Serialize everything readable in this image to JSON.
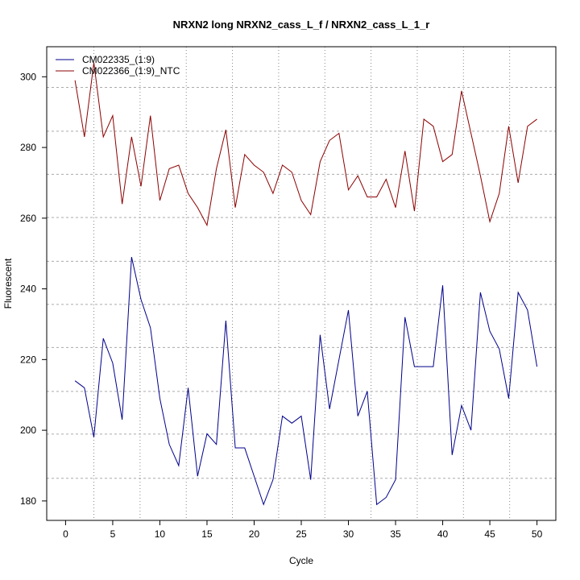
{
  "chart_data": {
    "type": "line",
    "title": "NRXN2 long NRXN2_cass_L_f / NRXN2_cass_L_1_r",
    "xlabel": "Cycle",
    "ylabel": "Fluorescent",
    "xlim": [
      -2,
      52
    ],
    "ylim": [
      174.5,
      308.5
    ],
    "xticks": [
      0,
      5,
      10,
      15,
      20,
      25,
      30,
      35,
      40,
      45,
      50
    ],
    "yticks": [
      180,
      200,
      220,
      240,
      260,
      280,
      300
    ],
    "grid_x": [
      3.0,
      7.9,
      12.8,
      17.7,
      22.6,
      27.5,
      32.4,
      37.3,
      42.2,
      47.1
    ],
    "grid_y": [
      186.4,
      198.9,
      211.0,
      223.4,
      235.6,
      247.8,
      260.2,
      272.4,
      284.6,
      297.0
    ],
    "legend_position": "top-left",
    "x": [
      1,
      2,
      3,
      4,
      5,
      6,
      7,
      8,
      9,
      10,
      11,
      12,
      13,
      14,
      15,
      16,
      17,
      18,
      19,
      20,
      21,
      22,
      23,
      24,
      25,
      26,
      27,
      28,
      29,
      30,
      31,
      32,
      33,
      34,
      35,
      36,
      37,
      38,
      39,
      40,
      41,
      42,
      43,
      44,
      45,
      46,
      47,
      48,
      49,
      50
    ],
    "series": [
      {
        "name": "CM022335_(1:9)",
        "color": "#00008b",
        "values": [
          214,
          212,
          198,
          226,
          219,
          203,
          249,
          237,
          229,
          209,
          196,
          190,
          212,
          187,
          199,
          196,
          231,
          195,
          195,
          187,
          179,
          186,
          204,
          202,
          204,
          186,
          227,
          206,
          220,
          234,
          204,
          211,
          179,
          181,
          186,
          232,
          218,
          218,
          218,
          241,
          193,
          207,
          200,
          239,
          228,
          223,
          209,
          239,
          234,
          218
        ]
      },
      {
        "name": "CM022366_(1:9)_NTC",
        "color": "#8b0000",
        "values": [
          299,
          283,
          304,
          283,
          289,
          264,
          283,
          269,
          289,
          265,
          274,
          275,
          267,
          263,
          258,
          274,
          285,
          263,
          278,
          275,
          273,
          267,
          275,
          273,
          265,
          261,
          276,
          282,
          284,
          268,
          272,
          266,
          266,
          271,
          263,
          279,
          262,
          288,
          286,
          276,
          278,
          296,
          284,
          272,
          259,
          267,
          286,
          270,
          286,
          288
        ]
      }
    ]
  }
}
